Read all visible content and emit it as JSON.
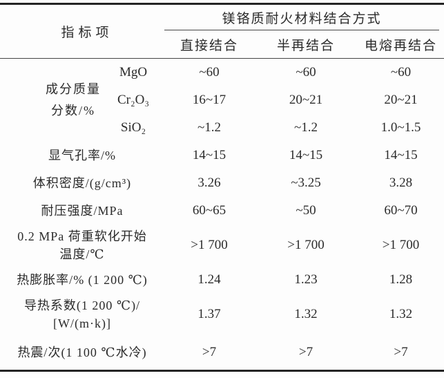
{
  "colors": {
    "text": "#2b2b2b",
    "border_heavy": "#242424",
    "border_light": "#454545",
    "background": "#fdfdfd"
  },
  "table": {
    "header": {
      "indicator_col": "指标项",
      "span_title": "镁铬质耐火材料结合方式",
      "columns": [
        "直接结合",
        "半再结合",
        "电熔再结合"
      ]
    },
    "composition": {
      "label_line1": "成分质量",
      "label_line2": "分数/%",
      "rows": [
        {
          "formula": "MgO",
          "values": [
            "~60",
            "~60",
            "~60"
          ]
        },
        {
          "formula": "Cr₂O₃",
          "values": [
            "16~17",
            "20~21",
            "20~21"
          ]
        },
        {
          "formula": "SiO₂",
          "values": [
            "~1.2",
            "~1.2",
            "1.0~1.5"
          ]
        }
      ]
    },
    "rows": [
      {
        "label": "显气孔率/%",
        "values": [
          "14~15",
          "14~15",
          "14~15"
        ]
      },
      {
        "label": "体积密度/(g/cm³)",
        "values": [
          "3.26",
          "~3.25",
          "3.28"
        ]
      },
      {
        "label": "耐压强度/MPa",
        "values": [
          "60~65",
          "~50",
          "60~70"
        ]
      },
      {
        "label_line1": "0.2 MPa 荷重软化开始",
        "label_line2": "温度/℃",
        "values": [
          ">1 700",
          ">1 700",
          ">1 700"
        ]
      },
      {
        "label": "热膨胀率/% (1 200 ℃)",
        "values": [
          "1.24",
          "1.23",
          "1.28"
        ]
      },
      {
        "label_line1": "导热系数(1 200 ℃)/",
        "label_line2": "[W/(m·k)]",
        "values": [
          "1.37",
          "1.32",
          "1.32"
        ]
      },
      {
        "label": "热震/次(1 100 ℃水冷)",
        "values": [
          ">7",
          ">7",
          ">7"
        ]
      }
    ]
  }
}
